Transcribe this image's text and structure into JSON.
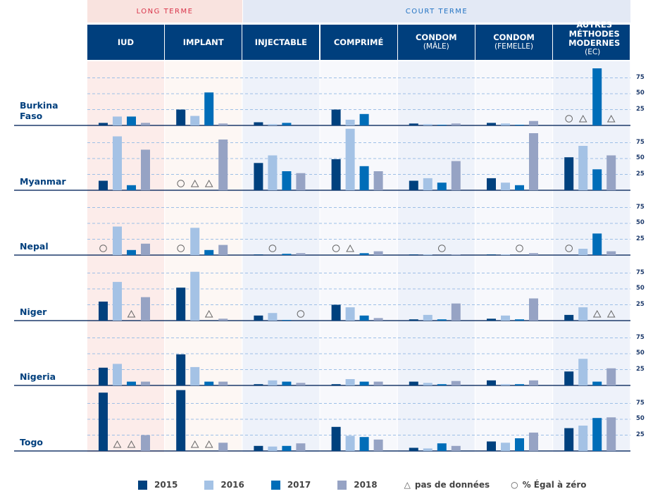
{
  "chart_data": {
    "type": "bar",
    "title": "",
    "groups": [
      {
        "label": "LONG TERME",
        "color": "#d9344a",
        "columns": 2
      },
      {
        "label": "COURT TERME",
        "color": "#2474c4",
        "columns": 5
      }
    ],
    "methods": [
      {
        "label": "IUD",
        "sub": ""
      },
      {
        "label": "IMPLANT",
        "sub": ""
      },
      {
        "label": "INJECTABLE",
        "sub": ""
      },
      {
        "label": "COMPRIMÉ",
        "sub": ""
      },
      {
        "label": "CONDOM",
        "sub": "(MÂLE)"
      },
      {
        "label": "CONDOM",
        "sub": "(FEMELLE)"
      },
      {
        "label": "AUTRES MÉTHODES MODERNES",
        "sub": "(EC)"
      }
    ],
    "series_years": [
      "2015",
      "2016",
      "2017",
      "2018"
    ],
    "series_colors": [
      "#00417e",
      "#a4c2e5",
      "#006db8",
      "#96a3c4"
    ],
    "ylim": [
      0,
      100
    ],
    "yticks": [
      "25",
      "50",
      "75"
    ],
    "marker_note": "values 'nd' = triangle (pas de données), 'zero' = circle (% égal à zéro)",
    "countries": [
      {
        "name": "Burkina Faso",
        "values": [
          [
            4,
            14,
            14,
            4
          ],
          [
            25,
            15,
            52,
            3
          ],
          [
            5,
            2,
            4,
            0
          ],
          [
            25,
            9,
            18,
            0
          ],
          [
            3,
            2,
            1,
            3
          ],
          [
            4,
            3,
            1,
            7
          ],
          [
            "zero",
            "nd",
            90,
            "nd"
          ]
        ]
      },
      {
        "name": "Myanmar",
        "values": [
          [
            15,
            85,
            8,
            64
          ],
          [
            "zero",
            "nd",
            "nd",
            80
          ],
          [
            43,
            55,
            30,
            27
          ],
          [
            49,
            97,
            38,
            30
          ],
          [
            15,
            19,
            12,
            46
          ],
          [
            19,
            12,
            8,
            90
          ],
          [
            52,
            70,
            33,
            55
          ]
        ]
      },
      {
        "name": "Nepal",
        "values": [
          [
            "zero",
            45,
            8,
            18
          ],
          [
            "zero",
            43,
            8,
            16
          ],
          [
            1,
            "zero",
            2,
            3
          ],
          [
            "zero",
            "nd",
            3,
            6
          ],
          [
            1,
            1,
            "zero",
            1
          ],
          [
            1,
            1,
            "zero",
            3
          ],
          [
            "zero",
            10,
            34,
            6
          ]
        ]
      },
      {
        "name": "Niger",
        "values": [
          [
            30,
            61,
            "nd",
            37
          ],
          [
            52,
            77,
            "nd",
            3
          ],
          [
            8,
            12,
            1,
            "zero"
          ],
          [
            25,
            21,
            8,
            4
          ],
          [
            2,
            9,
            2,
            27
          ],
          [
            3,
            8,
            2,
            35
          ],
          [
            9,
            21,
            "nd",
            "nd"
          ]
        ]
      },
      {
        "name": "Nigeria",
        "values": [
          [
            28,
            34,
            6,
            6
          ],
          [
            49,
            29,
            6,
            6
          ],
          [
            2,
            8,
            6,
            4
          ],
          [
            2,
            10,
            6,
            6
          ],
          [
            6,
            4,
            2,
            7
          ],
          [
            8,
            2,
            2,
            8
          ],
          [
            22,
            42,
            6,
            27
          ]
        ]
      },
      {
        "name": "Togo",
        "values": [
          [
            92,
            "nd",
            "nd",
            25
          ],
          [
            96,
            "nd",
            "nd",
            13
          ],
          [
            8,
            7,
            8,
            12
          ],
          [
            38,
            24,
            22,
            18
          ],
          [
            5,
            4,
            12,
            8
          ],
          [
            15,
            13,
            20,
            29
          ],
          [
            36,
            40,
            52,
            53
          ]
        ]
      }
    ],
    "legend": {
      "items": [
        "2015",
        "2016",
        "2017",
        "2018"
      ],
      "no_data": "pas de données",
      "zero": "% Égal à zéro"
    }
  }
}
